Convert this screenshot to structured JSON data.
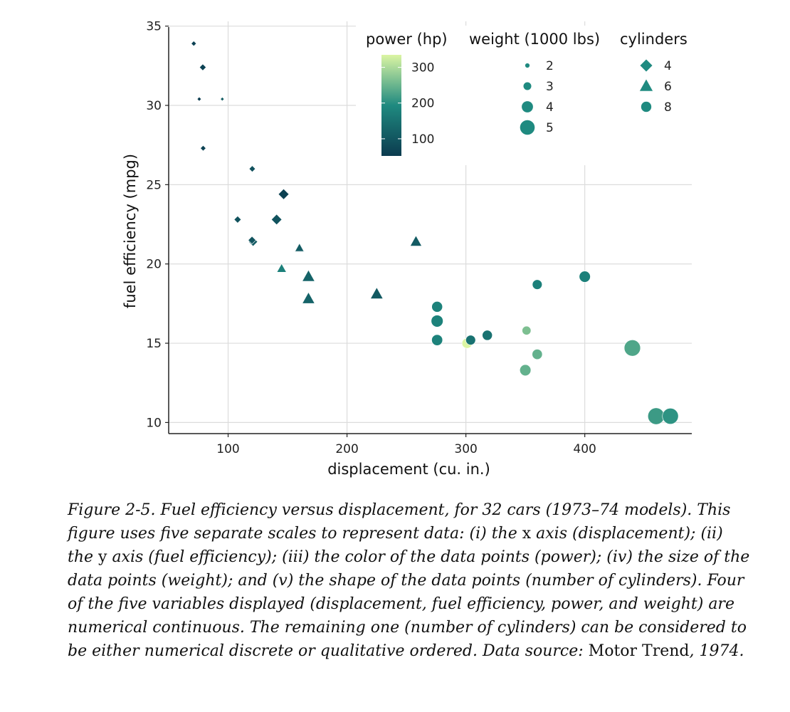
{
  "chart_data": {
    "type": "scatter",
    "xlabel": "displacement (cu. in.)",
    "ylabel": "fuel efficiency (mpg)",
    "xlim": [
      50,
      490
    ],
    "ylim": [
      9.3,
      35.3
    ],
    "x_ticks": [
      100,
      200,
      300,
      400
    ],
    "y_ticks": [
      10,
      15,
      20,
      25,
      30,
      35
    ],
    "grid": true,
    "legend_placement": "top-right, inside plot",
    "legends": {
      "color": {
        "title": "power (hp)",
        "ticks": [
          100,
          200,
          300
        ],
        "range": [
          52,
          335
        ],
        "low_color": "#0b3b4f",
        "mid_color": "#1f8a80",
        "high_color": "#dbf5a3"
      },
      "size": {
        "title": "weight (1000 lbs)",
        "values": [
          2,
          3,
          4,
          5
        ],
        "labels": [
          "2",
          "3",
          "4",
          "5"
        ]
      },
      "shape": {
        "title": "cylinders",
        "values": [
          4,
          6,
          8
        ],
        "labels": [
          "4",
          "6",
          "8"
        ],
        "shapes": [
          "diamond",
          "triangle",
          "circle"
        ]
      }
    },
    "points": [
      {
        "disp": 71.1,
        "mpg": 33.9,
        "hp": 65,
        "wt": 1.835,
        "cyl": 4
      },
      {
        "disp": 78.7,
        "mpg": 32.4,
        "hp": 66,
        "wt": 2.2,
        "cyl": 4
      },
      {
        "disp": 75.7,
        "mpg": 30.4,
        "hp": 52,
        "wt": 1.615,
        "cyl": 4
      },
      {
        "disp": 95.1,
        "mpg": 30.4,
        "hp": 113,
        "wt": 1.513,
        "cyl": 4
      },
      {
        "disp": 79.0,
        "mpg": 27.3,
        "hp": 66,
        "wt": 1.935,
        "cyl": 4
      },
      {
        "disp": 120.3,
        "mpg": 26.0,
        "hp": 91,
        "wt": 2.14,
        "cyl": 4
      },
      {
        "disp": 146.7,
        "mpg": 24.4,
        "hp": 62,
        "wt": 3.19,
        "cyl": 4
      },
      {
        "disp": 108.0,
        "mpg": 22.8,
        "hp": 93,
        "wt": 2.32,
        "cyl": 4
      },
      {
        "disp": 140.8,
        "mpg": 22.8,
        "hp": 95,
        "wt": 3.15,
        "cyl": 4
      },
      {
        "disp": 120.1,
        "mpg": 21.5,
        "hp": 97,
        "wt": 2.465,
        "cyl": 4
      },
      {
        "disp": 121.0,
        "mpg": 21.4,
        "hp": 109,
        "wt": 2.78,
        "cyl": 4
      },
      {
        "disp": 160.0,
        "mpg": 21.0,
        "hp": 110,
        "wt": 2.62,
        "cyl": 6
      },
      {
        "disp": 160.0,
        "mpg": 21.0,
        "hp": 110,
        "wt": 2.875,
        "cyl": 6
      },
      {
        "disp": 258.0,
        "mpg": 21.4,
        "hp": 110,
        "wt": 3.215,
        "cyl": 6
      },
      {
        "disp": 145.0,
        "mpg": 19.7,
        "hp": 175,
        "wt": 2.77,
        "cyl": 6
      },
      {
        "disp": 167.6,
        "mpg": 19.2,
        "hp": 123,
        "wt": 3.44,
        "cyl": 6
      },
      {
        "disp": 167.6,
        "mpg": 17.8,
        "hp": 123,
        "wt": 3.44,
        "cyl": 6
      },
      {
        "disp": 225.0,
        "mpg": 18.1,
        "hp": 105,
        "wt": 3.46,
        "cyl": 6
      },
      {
        "disp": 275.8,
        "mpg": 17.3,
        "hp": 180,
        "wt": 3.73,
        "cyl": 8
      },
      {
        "disp": 275.8,
        "mpg": 16.4,
        "hp": 180,
        "wt": 4.07,
        "cyl": 8
      },
      {
        "disp": 275.8,
        "mpg": 15.2,
        "hp": 180,
        "wt": 3.78,
        "cyl": 8
      },
      {
        "disp": 304.0,
        "mpg": 15.2,
        "hp": 150,
        "wt": 3.435,
        "cyl": 8
      },
      {
        "disp": 318.0,
        "mpg": 15.5,
        "hp": 150,
        "wt": 3.52,
        "cyl": 8
      },
      {
        "disp": 301.0,
        "mpg": 15.0,
        "hp": 335,
        "wt": 3.57,
        "cyl": 8
      },
      {
        "disp": 360.0,
        "mpg": 18.7,
        "hp": 175,
        "wt": 3.44,
        "cyl": 8
      },
      {
        "disp": 400.0,
        "mpg": 19.2,
        "hp": 175,
        "wt": 3.845,
        "cyl": 8
      },
      {
        "disp": 351.0,
        "mpg": 15.8,
        "hp": 264,
        "wt": 3.17,
        "cyl": 8
      },
      {
        "disp": 360.0,
        "mpg": 14.3,
        "hp": 245,
        "wt": 3.57,
        "cyl": 8
      },
      {
        "disp": 350.0,
        "mpg": 13.3,
        "hp": 245,
        "wt": 3.84,
        "cyl": 8
      },
      {
        "disp": 440.0,
        "mpg": 14.7,
        "hp": 230,
        "wt": 5.345,
        "cyl": 8
      },
      {
        "disp": 460.0,
        "mpg": 10.4,
        "hp": 215,
        "wt": 5.424,
        "cyl": 8
      },
      {
        "disp": 472.0,
        "mpg": 10.4,
        "hp": 205,
        "wt": 5.25,
        "cyl": 8
      }
    ]
  },
  "caption": {
    "part1": "Figure 2-5. Fuel efficiency versus displacement, for 32 cars (1973–74 models). This figure uses five separate scales to represent data: (i) the ",
    "x": "x",
    "part2": " axis (displacement); (ii) the ",
    "y": "y",
    "part3": " axis (fuel efficiency); (iii) the color of the data points (power); (iv) the size of the data points (weight); and (v) the shape of the data points (number of cylinders). Four of the five variables displayed (displacement, fuel efficiency, power, and weight) are numerical continuous. The remaining one (number of cylinders) can be considered to be either numerical discrete or qualitative ordered. Data source: ",
    "source": "Motor Trend",
    "part4": ", 1974."
  }
}
